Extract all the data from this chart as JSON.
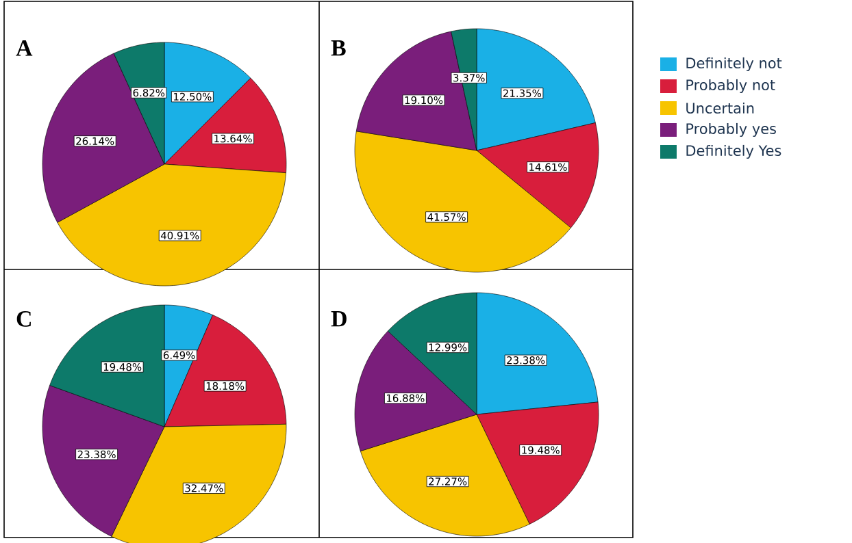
{
  "chart_data": [
    {
      "type": "pie",
      "title": "A",
      "categories": [
        "Definitely not",
        "Probably not",
        "Uncertain",
        "Probably yes",
        "Definitely Yes"
      ],
      "values": [
        12.5,
        13.64,
        40.91,
        26.14,
        6.82
      ],
      "value_labels": [
        "12.50%",
        "13.64%",
        "40.91%",
        "26.14%",
        "6.82%"
      ],
      "colors": [
        "#1ab0e6",
        "#d81e3c",
        "#f7c400",
        "#7a1e7b",
        "#0d7a6a"
      ],
      "legend": "right"
    },
    {
      "type": "pie",
      "title": "B",
      "categories": [
        null,
        null,
        null,
        null,
        null
      ],
      "values": [
        21.35,
        14.61,
        41.57,
        19.1,
        3.37
      ],
      "value_labels": [
        "21.35%",
        "14.61%",
        "41.57%",
        "19.10%",
        "3.37%"
      ],
      "colors": [
        "#1ab0e6",
        "#d81e3c",
        "#f7c400",
        "#7a1e7b",
        "#0d7a6a"
      ]
    },
    {
      "type": "pie",
      "title": "C",
      "categories": [
        null,
        null,
        null,
        null,
        null
      ],
      "values": [
        6.49,
        18.18,
        32.47,
        23.38,
        19.48
      ],
      "value_labels": [
        "6.49%",
        "18.18%",
        "32.47%",
        "23.38%",
        "19.48%"
      ],
      "colors": [
        "#1ab0e6",
        "#d81e3c",
        "#f7c400",
        "#7a1e7b",
        "#0d7a6a"
      ]
    },
    {
      "type": "pie",
      "title": "D",
      "categories": [
        null,
        null,
        null,
        null,
        null
      ],
      "values": [
        23.38,
        19.48,
        27.27,
        16.88,
        12.99
      ],
      "value_labels": [
        "23.38%",
        "19.48%",
        "27.27%",
        "16.88%",
        "12.99%"
      ],
      "colors": [
        "#1ab0e6",
        "#d81e3c",
        "#f7c400",
        "#7a1e7b",
        "#0d7a6a"
      ]
    }
  ]
}
